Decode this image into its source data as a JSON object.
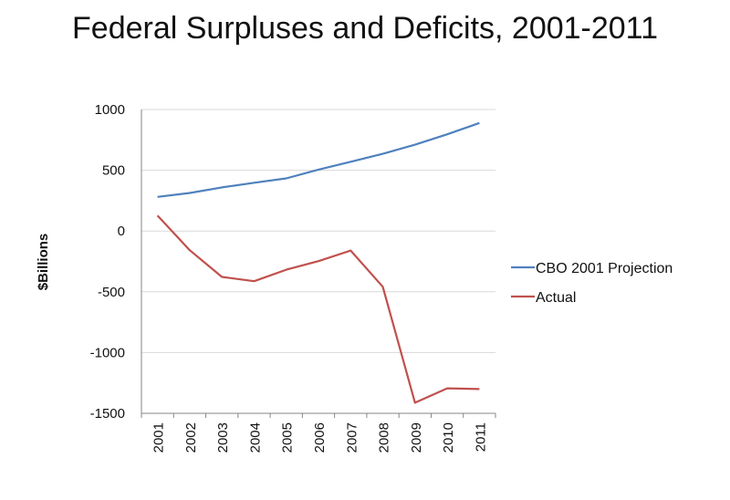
{
  "chart_data": {
    "type": "line",
    "title": "Federal Surpluses and Deficits, 2001-2011",
    "xlabel": "",
    "ylabel": "$Billions",
    "categories": [
      "2001",
      "2002",
      "2003",
      "2004",
      "2005",
      "2006",
      "2007",
      "2008",
      "2009",
      "2010",
      "2011"
    ],
    "ylim": [
      -1500,
      1000
    ],
    "yticks": [
      1000,
      500,
      0,
      -500,
      -1000,
      -1500
    ],
    "grid": true,
    "legend_position": "right",
    "series": [
      {
        "name": "CBO 2001 Projection",
        "color": "#4f81bd",
        "values": [
          281,
          313,
          359,
          397,
          433,
          505,
          570,
          635,
          710,
          796,
          889
        ]
      },
      {
        "name": "Actual",
        "color": "#c0504d",
        "values": [
          128,
          -158,
          -378,
          -413,
          -318,
          -248,
          -161,
          -459,
          -1413,
          -1294,
          -1300
        ]
      }
    ]
  }
}
